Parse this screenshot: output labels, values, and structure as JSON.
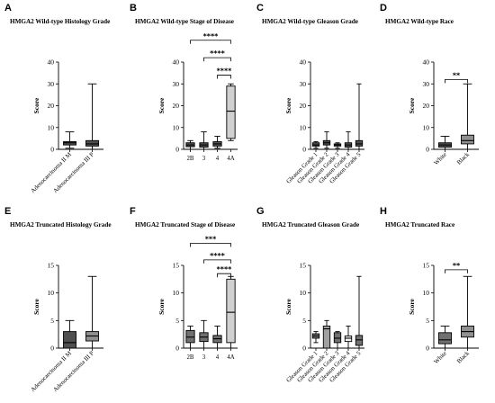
{
  "chart_data": [
    {
      "panel": "A",
      "title": "HMGA2 Wild-type Histology Grade",
      "type": "box",
      "ylabel": "Score",
      "ylim": [
        0,
        40
      ],
      "yticks": [
        0,
        10,
        20,
        30,
        40
      ],
      "categories": [
        "Adenocarcinoma II M",
        "Adenocarcinoma III P"
      ],
      "boxes": [
        {
          "min": 0.5,
          "q1": 2,
          "median": 3,
          "q3": 3.5,
          "max": 8,
          "fill": "#505050"
        },
        {
          "min": 0,
          "q1": 1.5,
          "median": 2.5,
          "q3": 4,
          "max": 30,
          "fill": "#505050"
        }
      ],
      "brackets": []
    },
    {
      "panel": "B",
      "title": "HMGA2 Wild-type Stage of Disease",
      "type": "box",
      "ylabel": "Score",
      "ylim": [
        0,
        40
      ],
      "yticks": [
        0,
        10,
        20,
        30,
        40
      ],
      "categories": [
        "2B",
        "3",
        "4",
        "4A"
      ],
      "boxes": [
        {
          "min": 0,
          "q1": 1.2,
          "median": 2,
          "q3": 3,
          "max": 4,
          "fill": "#505050"
        },
        {
          "min": 0,
          "q1": 1,
          "median": 2,
          "q3": 3,
          "max": 8,
          "fill": "#505050"
        },
        {
          "min": 0.5,
          "q1": 1.5,
          "median": 2.5,
          "q3": 3.5,
          "max": 6,
          "fill": "#505050"
        },
        {
          "min": 4,
          "q1": 5,
          "median": 17.5,
          "q3": 29,
          "max": 30,
          "fill": "#d0d0d0"
        }
      ],
      "brackets": [
        {
          "from": 0,
          "to": 3,
          "label": "****",
          "y": 50
        },
        {
          "from": 1,
          "to": 3,
          "label": "****",
          "y": 42
        },
        {
          "from": 2,
          "to": 3,
          "label": "****",
          "y": 34
        }
      ]
    },
    {
      "panel": "C",
      "title": "HMGA2 Wild-type Gleason Grade",
      "type": "box",
      "ylabel": "Score",
      "ylim": [
        0,
        40
      ],
      "yticks": [
        0,
        10,
        20,
        30,
        40
      ],
      "categories": [
        "Gleason Grade 1",
        "Gleason Grade 2",
        "Gleason Grade 3",
        "Gleason Grade 4",
        "Gleason Grade 5"
      ],
      "boxes": [
        {
          "min": 0.5,
          "q1": 1.5,
          "median": 2,
          "q3": 3,
          "max": 3.5,
          "fill": "#505050"
        },
        {
          "min": 0.5,
          "q1": 2,
          "median": 3,
          "q3": 4,
          "max": 8,
          "fill": "#505050"
        },
        {
          "min": 0.5,
          "q1": 1.5,
          "median": 2,
          "q3": 2.5,
          "max": 3,
          "fill": "#505050"
        },
        {
          "min": 0,
          "q1": 1,
          "median": 2,
          "q3": 3,
          "max": 8,
          "fill": "#505050"
        },
        {
          "min": 0,
          "q1": 1.5,
          "median": 2.5,
          "q3": 4,
          "max": 30,
          "fill": "#505050"
        }
      ],
      "brackets": []
    },
    {
      "panel": "D",
      "title": "HMGA2 Wild-type Race",
      "type": "box",
      "ylabel": "Score",
      "ylim": [
        0,
        40
      ],
      "yticks": [
        0,
        10,
        20,
        30,
        40
      ],
      "categories": [
        "White",
        "Black"
      ],
      "boxes": [
        {
          "min": 0,
          "q1": 1,
          "median": 2,
          "q3": 3,
          "max": 6,
          "fill": "#505050"
        },
        {
          "min": 0,
          "q1": 2.5,
          "median": 4,
          "q3": 6.5,
          "max": 30,
          "fill": "#909090"
        }
      ],
      "brackets": [
        {
          "from": 0,
          "to": 1,
          "label": "**",
          "y": 32
        }
      ]
    },
    {
      "panel": "E",
      "title": "HMGA2 Truncated Histology Grade",
      "type": "box",
      "ylabel": "Score",
      "ylim": [
        0,
        15
      ],
      "yticks": [
        0,
        5,
        10,
        15
      ],
      "categories": [
        "Adenocarcinoma II M",
        "Adenocarcinoma III P"
      ],
      "boxes": [
        {
          "min": 0,
          "q1": 0,
          "median": 1,
          "q3": 3,
          "max": 5,
          "fill": "#505050"
        },
        {
          "min": 0,
          "q1": 1.3,
          "median": 2.2,
          "q3": 3,
          "max": 13,
          "fill": "#909090"
        }
      ],
      "brackets": []
    },
    {
      "panel": "F",
      "title": "HMGA2 Truncated Stage of Disease",
      "type": "box",
      "ylabel": "Score",
      "ylim": [
        0,
        15
      ],
      "yticks": [
        0,
        5,
        10,
        15
      ],
      "categories": [
        "2B",
        "3",
        "4",
        "4A"
      ],
      "boxes": [
        {
          "min": 0,
          "q1": 1,
          "median": 2,
          "q3": 3.2,
          "max": 4,
          "fill": "#707070"
        },
        {
          "min": 0,
          "q1": 1.2,
          "median": 2,
          "q3": 2.8,
          "max": 5,
          "fill": "#707070"
        },
        {
          "min": 0,
          "q1": 1,
          "median": 1.7,
          "q3": 2.3,
          "max": 4,
          "fill": "#707070"
        },
        {
          "min": 0,
          "q1": 1,
          "median": 6.5,
          "q3": 12.5,
          "max": 13,
          "fill": "#d0d0d0"
        }
      ],
      "brackets": [
        {
          "from": 0,
          "to": 3,
          "label": "***",
          "y": 19
        },
        {
          "from": 1,
          "to": 3,
          "label": "****",
          "y": 16
        },
        {
          "from": 2,
          "to": 3,
          "label": "****",
          "y": 13.5
        }
      ]
    },
    {
      "panel": "G",
      "title": "HMGA2 Truncated Gleason Grade",
      "type": "box",
      "ylabel": "Score",
      "ylim": [
        0,
        15
      ],
      "yticks": [
        0,
        5,
        10,
        15
      ],
      "categories": [
        "Gleason Grade 1",
        "Gleason Grade 2",
        "Gleason Grade 3",
        "Gleason Grade 4",
        "Gleason Grade 5"
      ],
      "boxes": [
        {
          "min": 1,
          "q1": 1.8,
          "median": 2.2,
          "q3": 2.6,
          "max": 3,
          "fill": "#707070"
        },
        {
          "min": 0,
          "q1": 0,
          "median": 3.5,
          "q3": 4,
          "max": 5,
          "fill": "#a0a0a0"
        },
        {
          "min": 0,
          "q1": 1,
          "median": 1.8,
          "q3": 2.8,
          "max": 3,
          "fill": "#707070"
        },
        {
          "min": 0,
          "q1": 1.2,
          "median": 1.8,
          "q3": 2.2,
          "max": 4,
          "fill": "#f0f0f0"
        },
        {
          "min": 0,
          "q1": 0.5,
          "median": 1.5,
          "q3": 2.3,
          "max": 13,
          "fill": "#707070"
        }
      ],
      "brackets": []
    },
    {
      "panel": "H",
      "title": "HMGA2 Truncated  Race",
      "type": "box",
      "ylabel": "Score",
      "ylim": [
        0,
        15
      ],
      "yticks": [
        0,
        5,
        10,
        15
      ],
      "categories": [
        "White",
        "Black"
      ],
      "boxes": [
        {
          "min": 0,
          "q1": 0.8,
          "median": 1.5,
          "q3": 2.8,
          "max": 4,
          "fill": "#707070"
        },
        {
          "min": 0,
          "q1": 2,
          "median": 3,
          "q3": 4,
          "max": 13,
          "fill": "#909090"
        }
      ],
      "brackets": [
        {
          "from": 0,
          "to": 1,
          "label": "**",
          "y": 14.2
        }
      ]
    }
  ]
}
